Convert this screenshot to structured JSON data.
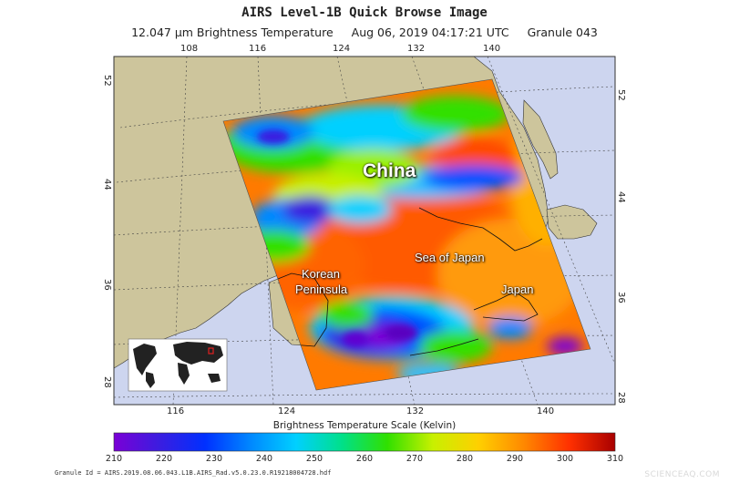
{
  "title": "AIRS Level-1B Quick Browse Image",
  "subtitle": {
    "band": "12.047 µm Brightness Temperature",
    "datetime": "Aug 06, 2019 04:17:21 UTC",
    "granule": "Granule 043"
  },
  "longitude_ticks_top": [
    "108",
    "116",
    "124",
    "132",
    "140"
  ],
  "longitude_ticks_bottom": [
    "116",
    "124",
    "132",
    "140"
  ],
  "latitude_ticks_left": [
    "52",
    "44",
    "36",
    "28"
  ],
  "latitude_ticks_right": [
    "52",
    "44",
    "36",
    "28"
  ],
  "labels": {
    "china": "China",
    "sea_of_japan": "Sea of Japan",
    "korean_1": "Korean",
    "korean_2": "Peninsula",
    "japan": "Japan"
  },
  "colorbar": {
    "title": "Brightness Temperature Scale (Kelvin)",
    "min": 210,
    "max": 310,
    "ticks": [
      "210",
      "220",
      "230",
      "240",
      "250",
      "260",
      "270",
      "280",
      "290",
      "300",
      "310"
    ],
    "colors": [
      "#7a00d6",
      "#3b1de0",
      "#0030ff",
      "#0088ff",
      "#00d0ff",
      "#00e08a",
      "#30e000",
      "#c8f000",
      "#ffd000",
      "#ff8800",
      "#ff3000",
      "#a80000"
    ]
  },
  "granule_id": "Granule Id = AIRS.2019.08.06.043.L1B.AIRS_Rad.v5.0.23.0.R19218004728.hdf",
  "watermark": "SCIENCEAQ.COM",
  "colors": {
    "land": "#cdc59c",
    "ocean": "#cdd5ef"
  }
}
